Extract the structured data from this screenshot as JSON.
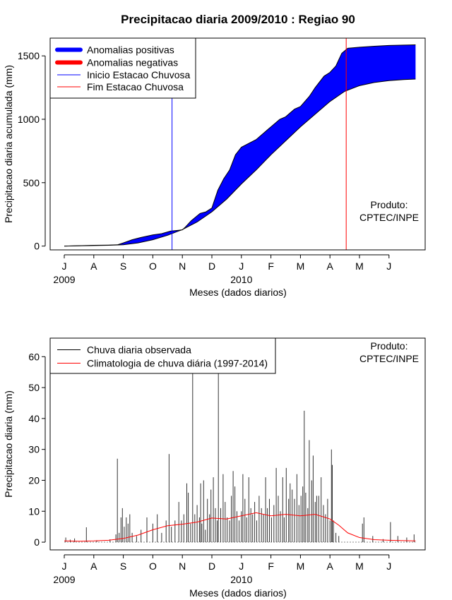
{
  "chart_data": [
    {
      "type": "area",
      "title": "Precipitacao diaria 2009/2010 : Regiao 90",
      "xlabel": "Meses (dados diarios)",
      "ylabel": "Precipitacao diaria acumulada (mm)",
      "ylim": [
        -30,
        1640
      ],
      "yticks": [
        0,
        500,
        1000,
        1500
      ],
      "month_ticks": [
        "J",
        "A",
        "S",
        "O",
        "N",
        "D",
        "J",
        "F",
        "M",
        "A",
        "M",
        "J"
      ],
      "year_labels": [
        {
          "label": "2009",
          "month_index": 0
        },
        {
          "label": "2010",
          "month_index": 6
        }
      ],
      "legend": {
        "position": "top-left",
        "items": [
          {
            "label": "Anomalias positivas",
            "color": "#0000ff",
            "style": "thick"
          },
          {
            "label": "Anomalias negativas",
            "color": "#ff0000",
            "style": "thick"
          },
          {
            "label": "Inicio Estacao Chuvosa",
            "color": "#0000ff",
            "style": "thin"
          },
          {
            "label": "Fim Estacao Chuvosa",
            "color": "#ff0000",
            "style": "thin"
          }
        ]
      },
      "credit": [
        "Produto:",
        "CPTEC/INPE"
      ],
      "onset_month": 3.65,
      "end_month": 9.55,
      "series": [
        {
          "name": "Anomalias positivas",
          "observed": [
            [
              0,
              0
            ],
            [
              0.5,
              3
            ],
            [
              1,
              6
            ],
            [
              1.5,
              8
            ],
            [
              1.8,
              10
            ],
            [
              2,
              25
            ],
            [
              2.3,
              50
            ],
            [
              2.6,
              68
            ],
            [
              3,
              88
            ],
            [
              3.3,
              98
            ],
            [
              3.6,
              118
            ],
            [
              4,
              128
            ],
            [
              4.1,
              150
            ],
            [
              4.3,
              200
            ],
            [
              4.6,
              258
            ],
            [
              4.8,
              270
            ],
            [
              5,
              300
            ],
            [
              5.2,
              440
            ],
            [
              5.4,
              530
            ],
            [
              5.6,
              600
            ],
            [
              5.8,
              720
            ],
            [
              6,
              780
            ],
            [
              6.5,
              840
            ],
            [
              7,
              940
            ],
            [
              7.3,
              1000
            ],
            [
              7.5,
              1020
            ],
            [
              7.8,
              1080
            ],
            [
              8,
              1100
            ],
            [
              8.3,
              1180
            ],
            [
              8.5,
              1250
            ],
            [
              8.8,
              1340
            ],
            [
              9,
              1370
            ],
            [
              9.2,
              1420
            ],
            [
              9.4,
              1520
            ],
            [
              9.6,
              1560
            ],
            [
              10,
              1568
            ],
            [
              10.5,
              1576
            ],
            [
              11,
              1582
            ],
            [
              11.5,
              1585
            ],
            [
              11.9,
              1587
            ]
          ],
          "climatology": [
            [
              0,
              0
            ],
            [
              0.5,
              2
            ],
            [
              1,
              4
            ],
            [
              1.5,
              6
            ],
            [
              2,
              10
            ],
            [
              2.5,
              25
            ],
            [
              3,
              50
            ],
            [
              3.5,
              85
            ],
            [
              4,
              130
            ],
            [
              4.5,
              190
            ],
            [
              5,
              270
            ],
            [
              5.5,
              370
            ],
            [
              6,
              490
            ],
            [
              6.5,
              600
            ],
            [
              7,
              720
            ],
            [
              7.5,
              830
            ],
            [
              8,
              940
            ],
            [
              8.5,
              1040
            ],
            [
              9,
              1140
            ],
            [
              9.5,
              1220
            ],
            [
              10,
              1265
            ],
            [
              10.5,
              1290
            ],
            [
              11,
              1305
            ],
            [
              11.5,
              1313
            ],
            [
              11.9,
              1317
            ]
          ]
        }
      ]
    },
    {
      "type": "bar",
      "xlabel": "Meses (dados diarios)",
      "ylabel": "Precipitacao diaria (mm)",
      "ylim": [
        -2.5,
        66
      ],
      "yticks": [
        0,
        10,
        20,
        30,
        40,
        50,
        60
      ],
      "month_ticks": [
        "J",
        "A",
        "S",
        "O",
        "N",
        "D",
        "J",
        "F",
        "M",
        "A",
        "M",
        "J"
      ],
      "year_labels": [
        {
          "label": "2009",
          "month_index": 0
        },
        {
          "label": "2010",
          "month_index": 6
        }
      ],
      "legend": {
        "position": "top-left",
        "items": [
          {
            "label": "Chuva diaria observada",
            "color": "#000000"
          },
          {
            "label": "Climatologia de chuva diária (1997-2014)",
            "color": "#ff0000"
          }
        ]
      },
      "credit": [
        "Produto:",
        "CPTEC/INPE"
      ],
      "series": [
        {
          "name": "Chuva diaria observada",
          "values": [
            [
              0.05,
              1.5
            ],
            [
              0.2,
              0.8
            ],
            [
              0.35,
              1.2
            ],
            [
              0.75,
              4.8
            ],
            [
              1.1,
              0.6
            ],
            [
              1.55,
              0.9
            ],
            [
              1.75,
              2.5
            ],
            [
              1.8,
              27
            ],
            [
              1.86,
              3
            ],
            [
              1.92,
              8
            ],
            [
              1.97,
              11
            ],
            [
              2.03,
              5
            ],
            [
              2.1,
              8
            ],
            [
              2.16,
              6
            ],
            [
              2.22,
              9
            ],
            [
              2.3,
              3
            ],
            [
              2.45,
              2
            ],
            [
              2.6,
              4
            ],
            [
              2.8,
              8
            ],
            [
              3,
              6
            ],
            [
              3.15,
              9
            ],
            [
              3.3,
              3
            ],
            [
              3.45,
              7
            ],
            [
              3.55,
              28.5
            ],
            [
              3.63,
              5
            ],
            [
              3.75,
              7
            ],
            [
              3.88,
              13
            ],
            [
              3.97,
              7
            ],
            [
              4.05,
              9
            ],
            [
              4.15,
              19
            ],
            [
              4.2,
              16
            ],
            [
              4.28,
              6
            ],
            [
              4.35,
              62
            ],
            [
              4.42,
              9
            ],
            [
              4.5,
              12
            ],
            [
              4.58,
              8
            ],
            [
              4.62,
              19
            ],
            [
              4.66,
              6
            ],
            [
              4.72,
              20
            ],
            [
              4.78,
              4
            ],
            [
              4.85,
              14
            ],
            [
              4.92,
              9
            ],
            [
              4.97,
              17
            ],
            [
              5.05,
              21
            ],
            [
              5.12,
              11
            ],
            [
              5.18,
              7
            ],
            [
              5.22,
              62
            ],
            [
              5.3,
              11
            ],
            [
              5.38,
              22
            ],
            [
              5.45,
              13
            ],
            [
              5.52,
              8
            ],
            [
              5.6,
              7
            ],
            [
              5.66,
              15
            ],
            [
              5.72,
              23
            ],
            [
              5.78,
              18
            ],
            [
              5.85,
              10
            ],
            [
              5.92,
              7
            ],
            [
              6,
              10
            ],
            [
              6.05,
              22
            ],
            [
              6.12,
              14
            ],
            [
              6.18,
              8
            ],
            [
              6.25,
              21
            ],
            [
              6.32,
              11
            ],
            [
              6.38,
              9
            ],
            [
              6.45,
              13
            ],
            [
              6.52,
              7
            ],
            [
              6.6,
              15
            ],
            [
              6.68,
              11
            ],
            [
              6.75,
              9
            ],
            [
              6.82,
              21
            ],
            [
              6.88,
              11
            ],
            [
              6.95,
              14
            ],
            [
              7.02,
              8
            ],
            [
              7.1,
              12
            ],
            [
              7.18,
              24
            ],
            [
              7.25,
              15
            ],
            [
              7.32,
              10
            ],
            [
              7.4,
              21
            ],
            [
              7.45,
              8
            ],
            [
              7.52,
              24
            ],
            [
              7.6,
              14
            ],
            [
              7.65,
              19
            ],
            [
              7.72,
              17
            ],
            [
              7.8,
              14
            ],
            [
              7.88,
              22
            ],
            [
              7.95,
              12
            ],
            [
              8.02,
              15
            ],
            [
              8.08,
              18
            ],
            [
              8.13,
              42.5
            ],
            [
              8.18,
              16
            ],
            [
              8.25,
              11
            ],
            [
              8.3,
              33
            ],
            [
              8.38,
              20
            ],
            [
              8.43,
              28
            ],
            [
              8.5,
              13
            ],
            [
              8.55,
              15
            ],
            [
              8.62,
              15
            ],
            [
              8.7,
              21
            ],
            [
              8.78,
              12
            ],
            [
              8.85,
              9
            ],
            [
              8.92,
              14
            ],
            [
              9,
              7
            ],
            [
              9.05,
              30
            ],
            [
              9.08,
              25
            ],
            [
              9.12,
              7
            ],
            [
              9.2,
              3
            ],
            [
              9.3,
              2
            ],
            [
              10.1,
              6
            ],
            [
              10.15,
              8
            ],
            [
              10.45,
              2
            ],
            [
              10.8,
              1
            ],
            [
              11.05,
              6.5
            ],
            [
              11.3,
              2
            ],
            [
              11.6,
              1.5
            ],
            [
              11.85,
              2.5
            ]
          ]
        },
        {
          "name": "Climatologia de chuva diária (1997-2014)",
          "values": [
            [
              0,
              0.4
            ],
            [
              0.5,
              0.3
            ],
            [
              1,
              0.4
            ],
            [
              1.5,
              0.6
            ],
            [
              2,
              1.2
            ],
            [
              2.5,
              2.3
            ],
            [
              3,
              4
            ],
            [
              3.5,
              5.3
            ],
            [
              4,
              5.8
            ],
            [
              4.5,
              6.5
            ],
            [
              5,
              7.8
            ],
            [
              5.5,
              7.5
            ],
            [
              6,
              8.5
            ],
            [
              6.5,
              9.5
            ],
            [
              7,
              8.5
            ],
            [
              7.5,
              9
            ],
            [
              8,
              8.5
            ],
            [
              8.5,
              9
            ],
            [
              9,
              7.5
            ],
            [
              9.3,
              5.5
            ],
            [
              9.6,
              3
            ],
            [
              10,
              1.5
            ],
            [
              10.5,
              0.8
            ],
            [
              11,
              0.6
            ],
            [
              11.5,
              0.5
            ],
            [
              11.9,
              0.4
            ]
          ]
        }
      ]
    }
  ]
}
